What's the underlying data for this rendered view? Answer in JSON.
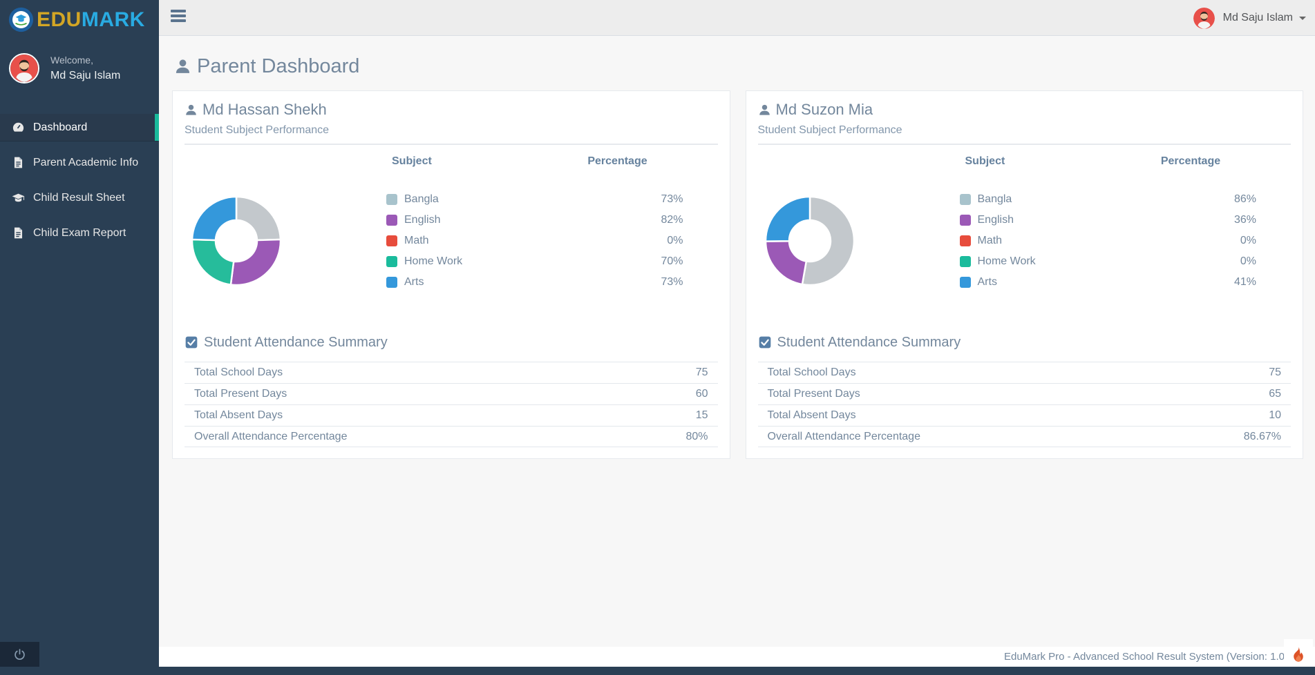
{
  "brand": {
    "logo_part1": "EDU",
    "logo_part2": "MARK"
  },
  "sidebar": {
    "welcome_label": "Welcome,",
    "user_name": "Md Saju Islam",
    "items": [
      {
        "label": "Dashboard",
        "icon": "dashboard-gauge-icon",
        "active": true
      },
      {
        "label": "Parent Academic Info",
        "icon": "document-icon",
        "active": false
      },
      {
        "label": "Child Result Sheet",
        "icon": "graduation-cap-icon",
        "active": false
      },
      {
        "label": "Child Exam Report",
        "icon": "document-icon",
        "active": false
      }
    ]
  },
  "topbar": {
    "user_name": "Md Saju Islam"
  },
  "page": {
    "title": "Parent Dashboard"
  },
  "cards": [
    {
      "student_name": "Md Hassan Shekh",
      "section_title": "Student Subject Performance",
      "table": {
        "subject_header": "Subject",
        "percentage_header": "Percentage"
      },
      "subjects": [
        {
          "label": "Bangla",
          "value_label": "73%",
          "color": "#A8C3CC"
        },
        {
          "label": "English",
          "value_label": "82%",
          "color": "#9B59B6"
        },
        {
          "label": "Math",
          "value_label": "0%",
          "color": "#E74C3C"
        },
        {
          "label": "Home Work",
          "value_label": "70%",
          "color": "#1ABB9C"
        },
        {
          "label": "Arts",
          "value_label": "73%",
          "color": "#3498DB"
        }
      ],
      "attendance": {
        "title": "Student Attendance Summary",
        "rows": [
          {
            "label": "Total School Days",
            "value": "75"
          },
          {
            "label": "Total Present Days",
            "value": "60"
          },
          {
            "label": "Total Absent Days",
            "value": "15"
          },
          {
            "label": "Overall Attendance Percentage",
            "value": "80%"
          }
        ]
      }
    },
    {
      "student_name": "Md Suzon Mia",
      "section_title": "Student Subject Performance",
      "table": {
        "subject_header": "Subject",
        "percentage_header": "Percentage"
      },
      "subjects": [
        {
          "label": "Bangla",
          "value_label": "86%",
          "color": "#A8C3CC"
        },
        {
          "label": "English",
          "value_label": "36%",
          "color": "#9B59B6"
        },
        {
          "label": "Math",
          "value_label": "0%",
          "color": "#E74C3C"
        },
        {
          "label": "Home Work",
          "value_label": "0%",
          "color": "#1ABB9C"
        },
        {
          "label": "Arts",
          "value_label": "41%",
          "color": "#3498DB"
        }
      ],
      "attendance": {
        "title": "Student Attendance Summary",
        "rows": [
          {
            "label": "Total School Days",
            "value": "75"
          },
          {
            "label": "Total Present Days",
            "value": "65"
          },
          {
            "label": "Total Absent Days",
            "value": "10"
          },
          {
            "label": "Overall Attendance Percentage",
            "value": "86.67%"
          }
        ]
      }
    }
  ],
  "footer": {
    "text": "EduMark Pro - Advanced School Result System (Version: 1.0"
  },
  "chart_data": [
    {
      "type": "donut",
      "title": "Md Hassan Shekh - Student Subject Performance",
      "categories": [
        "Bangla",
        "English",
        "Math",
        "Home Work",
        "Arts"
      ],
      "values": [
        73,
        82,
        0,
        70,
        73
      ],
      "colors": [
        "#C3C8CC",
        "#9B59B6",
        "#E74C3C",
        "#26BC9B",
        "#3498DB"
      ],
      "start_angle_deg": -90,
      "direction": "clockwise",
      "inner_radius_ratio": 0.47,
      "legend_position": "right-table"
    },
    {
      "type": "donut",
      "title": "Md Suzon Mia - Student Subject Performance",
      "categories": [
        "Bangla",
        "English",
        "Math",
        "Home Work",
        "Arts"
      ],
      "values": [
        86,
        36,
        0,
        0,
        41
      ],
      "colors": [
        "#C3C8CC",
        "#9B59B6",
        "#E74C3C",
        "#26BC9B",
        "#3498DB"
      ],
      "start_angle_deg": -90,
      "direction": "clockwise",
      "inner_radius_ratio": 0.47,
      "legend_position": "right-table"
    }
  ],
  "colors": {
    "sidebar_bg": "#2A3F54",
    "accent_teal": "#1ABB9C",
    "topbar_bg": "#EDEDED",
    "content_bg": "#F7F7F7",
    "card_border": "#E6E9ED",
    "body_text": "#73879C",
    "logo_edu": "#D3A625",
    "logo_mark": "#29ABE2",
    "flame_orange": "#DD5327",
    "avatar_bg": "#E8504A"
  }
}
